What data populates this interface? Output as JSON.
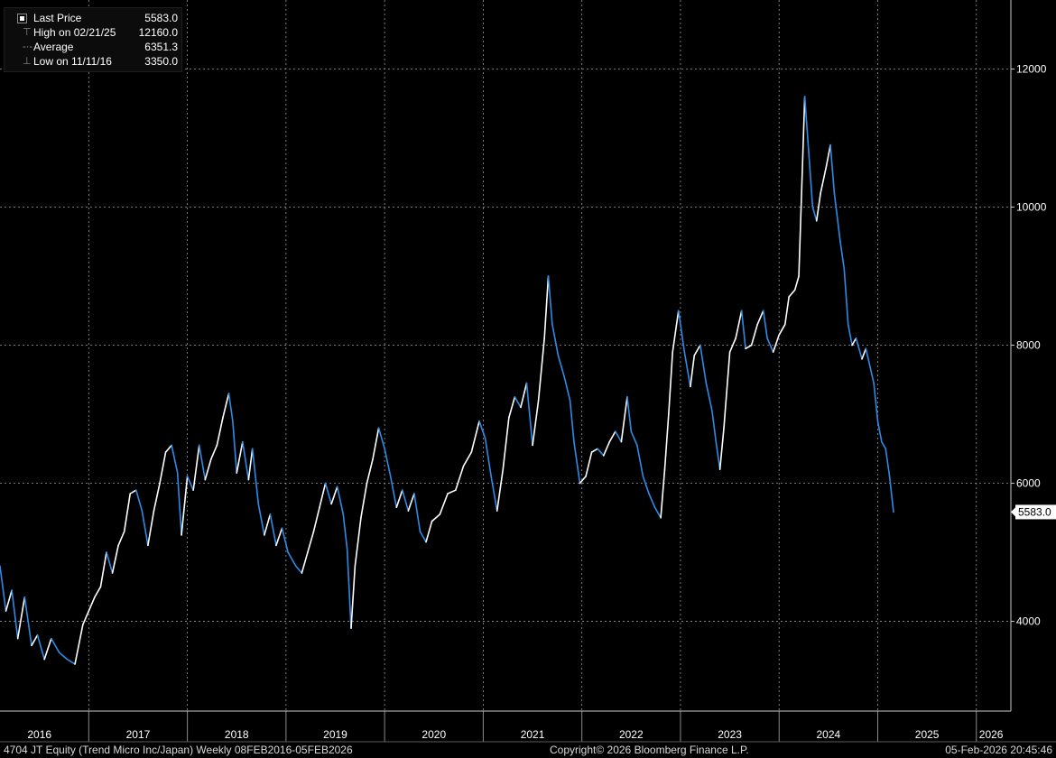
{
  "legend": {
    "items": [
      {
        "label": "Last Price",
        "value": "5583.0",
        "marker": "square-icon"
      },
      {
        "label": "High on 02/21/25",
        "value": "12160.0",
        "marker": "high-marker-icon"
      },
      {
        "label": "Average",
        "value": "6351.3",
        "marker": "average-marker-icon"
      },
      {
        "label": "Low on 11/11/16",
        "value": "3350.0",
        "marker": "low-marker-icon"
      }
    ]
  },
  "footer": {
    "security": "4704 JT Equity (Trend Micro Inc/Japan) Weekly 08FEB2016-05FEB2026",
    "copyright": "Copyright© 2026 Bloomberg Finance L.P.",
    "timestamp": "05-Feb-2026 20:45:46"
  },
  "chart_data": {
    "type": "line",
    "grid": true,
    "up_color": "#ffffff",
    "down_color": "#2d8be8",
    "ylim": [
      2700,
      13000
    ],
    "xlim": [
      2016.1,
      2026.35
    ],
    "y_ticks": [
      4000,
      6000,
      8000,
      10000,
      12000
    ],
    "y_tick_labels": [
      "4000",
      "6000",
      "8000",
      "10000",
      "12000"
    ],
    "x_labels": [
      {
        "text": "2016",
        "x": 2016.5
      },
      {
        "text": "2017",
        "x": 2017.5
      },
      {
        "text": "2018",
        "x": 2018.5
      },
      {
        "text": "2019",
        "x": 2019.5
      },
      {
        "text": "2020",
        "x": 2020.5
      },
      {
        "text": "2021",
        "x": 2021.5
      },
      {
        "text": "2022",
        "x": 2022.5
      },
      {
        "text": "2023",
        "x": 2023.5
      },
      {
        "text": "2024",
        "x": 2024.5
      },
      {
        "text": "2025",
        "x": 2025.5
      },
      {
        "text": "2026",
        "x": 2026.15
      }
    ],
    "x_dividers": [
      2017,
      2018,
      2019,
      2020,
      2021,
      2022,
      2023,
      2024,
      2025,
      2026
    ],
    "last_value": 5583,
    "last_value_label": "5583.0",
    "series": [
      {
        "points": [
          [
            2016.1,
            4800
          ],
          [
            2016.16,
            4150
          ],
          [
            2016.22,
            4450
          ],
          [
            2016.28,
            3750
          ],
          [
            2016.35,
            4350
          ],
          [
            2016.42,
            3650
          ],
          [
            2016.48,
            3800
          ],
          [
            2016.55,
            3450
          ],
          [
            2016.62,
            3750
          ],
          [
            2016.7,
            3550
          ],
          [
            2016.78,
            3450
          ],
          [
            2016.86,
            3380
          ],
          [
            2016.94,
            3950
          ],
          [
            2017.0,
            4150
          ],
          [
            2017.06,
            4350
          ],
          [
            2017.12,
            4500
          ],
          [
            2017.18,
            5000
          ],
          [
            2017.24,
            4700
          ],
          [
            2017.3,
            5100
          ],
          [
            2017.36,
            5300
          ],
          [
            2017.42,
            5850
          ],
          [
            2017.48,
            5900
          ],
          [
            2017.54,
            5600
          ],
          [
            2017.6,
            5100
          ],
          [
            2017.66,
            5600
          ],
          [
            2017.72,
            6000
          ],
          [
            2017.78,
            6450
          ],
          [
            2017.84,
            6550
          ],
          [
            2017.9,
            6150
          ],
          [
            2017.94,
            5250
          ],
          [
            2018.0,
            6100
          ],
          [
            2018.06,
            5900
          ],
          [
            2018.12,
            6550
          ],
          [
            2018.18,
            6050
          ],
          [
            2018.24,
            6350
          ],
          [
            2018.3,
            6550
          ],
          [
            2018.36,
            6950
          ],
          [
            2018.42,
            7300
          ],
          [
            2018.46,
            6900
          ],
          [
            2018.5,
            6150
          ],
          [
            2018.56,
            6600
          ],
          [
            2018.62,
            6050
          ],
          [
            2018.66,
            6500
          ],
          [
            2018.72,
            5700
          ],
          [
            2018.78,
            5250
          ],
          [
            2018.84,
            5550
          ],
          [
            2018.9,
            5100
          ],
          [
            2018.96,
            5350
          ],
          [
            2019.02,
            5000
          ],
          [
            2019.1,
            4800
          ],
          [
            2019.16,
            4700
          ],
          [
            2019.22,
            5000
          ],
          [
            2019.28,
            5300
          ],
          [
            2019.34,
            5650
          ],
          [
            2019.4,
            6000
          ],
          [
            2019.46,
            5700
          ],
          [
            2019.52,
            5950
          ],
          [
            2019.58,
            5550
          ],
          [
            2019.62,
            5050
          ],
          [
            2019.66,
            3900
          ],
          [
            2019.7,
            4800
          ],
          [
            2019.76,
            5500
          ],
          [
            2019.82,
            6000
          ],
          [
            2019.88,
            6350
          ],
          [
            2019.94,
            6800
          ],
          [
            2020.0,
            6500
          ],
          [
            2020.06,
            6100
          ],
          [
            2020.12,
            5650
          ],
          [
            2020.18,
            5900
          ],
          [
            2020.24,
            5600
          ],
          [
            2020.3,
            5850
          ],
          [
            2020.36,
            5300
          ],
          [
            2020.42,
            5150
          ],
          [
            2020.48,
            5450
          ],
          [
            2020.56,
            5550
          ],
          [
            2020.64,
            5850
          ],
          [
            2020.72,
            5900
          ],
          [
            2020.8,
            6250
          ],
          [
            2020.88,
            6450
          ],
          [
            2020.96,
            6900
          ],
          [
            2021.02,
            6650
          ],
          [
            2021.08,
            6100
          ],
          [
            2021.14,
            5600
          ],
          [
            2021.2,
            6200
          ],
          [
            2021.26,
            6950
          ],
          [
            2021.32,
            7250
          ],
          [
            2021.38,
            7100
          ],
          [
            2021.44,
            7450
          ],
          [
            2021.5,
            6550
          ],
          [
            2021.56,
            7200
          ],
          [
            2021.62,
            8100
          ],
          [
            2021.66,
            9000
          ],
          [
            2021.7,
            8300
          ],
          [
            2021.76,
            7850
          ],
          [
            2021.82,
            7550
          ],
          [
            2021.88,
            7200
          ],
          [
            2021.92,
            6600
          ],
          [
            2021.98,
            6000
          ],
          [
            2022.04,
            6100
          ],
          [
            2022.1,
            6450
          ],
          [
            2022.16,
            6500
          ],
          [
            2022.22,
            6400
          ],
          [
            2022.28,
            6600
          ],
          [
            2022.34,
            6750
          ],
          [
            2022.4,
            6600
          ],
          [
            2022.46,
            7250
          ],
          [
            2022.5,
            6750
          ],
          [
            2022.56,
            6550
          ],
          [
            2022.62,
            6100
          ],
          [
            2022.68,
            5850
          ],
          [
            2022.74,
            5650
          ],
          [
            2022.8,
            5500
          ],
          [
            2022.84,
            6200
          ],
          [
            2022.88,
            7000
          ],
          [
            2022.92,
            7900
          ],
          [
            2022.98,
            8500
          ],
          [
            2023.04,
            7900
          ],
          [
            2023.1,
            7400
          ],
          [
            2023.14,
            7850
          ],
          [
            2023.2,
            8000
          ],
          [
            2023.26,
            7450
          ],
          [
            2023.32,
            7050
          ],
          [
            2023.36,
            6600
          ],
          [
            2023.4,
            6200
          ],
          [
            2023.44,
            6800
          ],
          [
            2023.5,
            7900
          ],
          [
            2023.56,
            8100
          ],
          [
            2023.62,
            8500
          ],
          [
            2023.66,
            7950
          ],
          [
            2023.72,
            8000
          ],
          [
            2023.78,
            8300
          ],
          [
            2023.84,
            8500
          ],
          [
            2023.88,
            8100
          ],
          [
            2023.94,
            7900
          ],
          [
            2024.0,
            8150
          ],
          [
            2024.06,
            8300
          ],
          [
            2024.1,
            8700
          ],
          [
            2024.16,
            8800
          ],
          [
            2024.2,
            9000
          ],
          [
            2024.26,
            11600
          ],
          [
            2024.3,
            10800
          ],
          [
            2024.34,
            10000
          ],
          [
            2024.38,
            9800
          ],
          [
            2024.42,
            10200
          ],
          [
            2024.48,
            10600
          ],
          [
            2024.52,
            10900
          ],
          [
            2024.56,
            10200
          ],
          [
            2024.62,
            9500
          ],
          [
            2024.66,
            9100
          ],
          [
            2024.7,
            8300
          ],
          [
            2024.74,
            8000
          ],
          [
            2024.78,
            8100
          ],
          [
            2024.84,
            7800
          ],
          [
            2024.88,
            7950
          ],
          [
            2024.92,
            7700
          ],
          [
            2024.96,
            7450
          ],
          [
            2025.0,
            6900
          ],
          [
            2025.04,
            6600
          ],
          [
            2025.08,
            6500
          ],
          [
            2025.12,
            6100
          ],
          [
            2025.16,
            5583
          ]
        ]
      }
    ]
  }
}
